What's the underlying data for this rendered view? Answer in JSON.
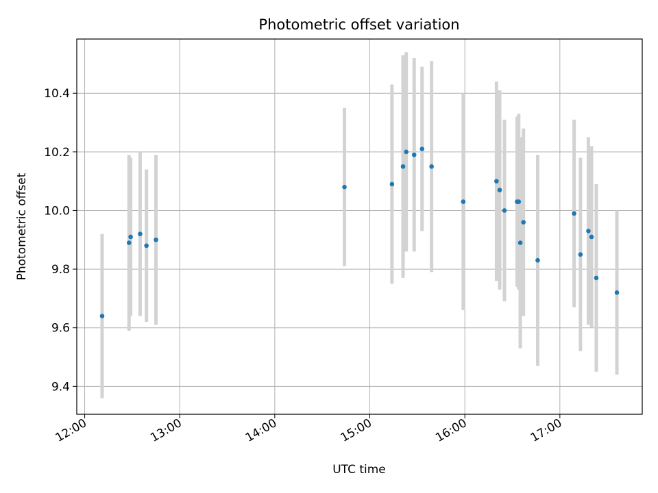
{
  "chart_data": {
    "type": "scatter",
    "title": "Photometric offset variation",
    "xlabel": "UTC time",
    "ylabel": "Photometric offset",
    "x_ticks": [
      "12:00",
      "13:00",
      "14:00",
      "15:00",
      "16:00",
      "17:00"
    ],
    "y_ticks": [
      "9.4",
      "9.6",
      "9.8",
      "10.0",
      "10.2",
      "10.4"
    ],
    "xlim": [
      "11:55",
      "17:52"
    ],
    "ylim": [
      9.305,
      10.585
    ],
    "grid": true,
    "marker_color": "#1f77b4",
    "errorbar_color": "#d3d3d3",
    "points": [
      {
        "x": "12:11",
        "y": 9.64,
        "err": 0.28
      },
      {
        "x": "12:28",
        "y": 9.89,
        "err": 0.3
      },
      {
        "x": "12:29",
        "y": 9.91,
        "err": 0.27
      },
      {
        "x": "12:35",
        "y": 9.92,
        "err": 0.28
      },
      {
        "x": "12:39",
        "y": 9.88,
        "err": 0.26
      },
      {
        "x": "12:45",
        "y": 9.9,
        "err": 0.29
      },
      {
        "x": "14:44",
        "y": 10.08,
        "err": 0.27
      },
      {
        "x": "15:14",
        "y": 10.09,
        "err": 0.34
      },
      {
        "x": "15:21",
        "y": 10.15,
        "err": 0.38
      },
      {
        "x": "15:23",
        "y": 10.2,
        "err": 0.34
      },
      {
        "x": "15:28",
        "y": 10.19,
        "err": 0.33
      },
      {
        "x": "15:33",
        "y": 10.21,
        "err": 0.28
      },
      {
        "x": "15:39",
        "y": 10.15,
        "err": 0.36
      },
      {
        "x": "15:59",
        "y": 10.03,
        "err": 0.37
      },
      {
        "x": "16:20",
        "y": 10.1,
        "err": 0.34
      },
      {
        "x": "16:22",
        "y": 10.07,
        "err": 0.34
      },
      {
        "x": "16:25",
        "y": 10.0,
        "err": 0.31
      },
      {
        "x": "16:33",
        "y": 10.03,
        "err": 0.29
      },
      {
        "x": "16:34",
        "y": 10.03,
        "err": 0.3
      },
      {
        "x": "16:35",
        "y": 9.89,
        "err": 0.36
      },
      {
        "x": "16:37",
        "y": 9.96,
        "err": 0.32
      },
      {
        "x": "16:46",
        "y": 9.83,
        "err": 0.36
      },
      {
        "x": "17:09",
        "y": 9.99,
        "err": 0.32
      },
      {
        "x": "17:13",
        "y": 9.85,
        "err": 0.33
      },
      {
        "x": "17:18",
        "y": 9.93,
        "err": 0.32
      },
      {
        "x": "17:20",
        "y": 9.91,
        "err": 0.31
      },
      {
        "x": "17:23",
        "y": 9.77,
        "err": 0.32
      },
      {
        "x": "17:36",
        "y": 9.72,
        "err": 0.28
      }
    ]
  }
}
